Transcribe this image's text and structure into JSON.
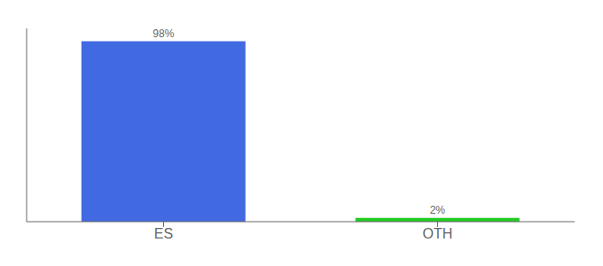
{
  "chart_data": {
    "type": "bar",
    "categories": [
      "ES",
      "OTH"
    ],
    "values": [
      98,
      2
    ],
    "colors": [
      "#4169e1",
      "#22cc22"
    ],
    "value_labels": [
      "98%",
      "2%"
    ],
    "data_labels": true,
    "ylim": [
      0,
      105
    ],
    "tick_labels": "x",
    "grid": false
  }
}
